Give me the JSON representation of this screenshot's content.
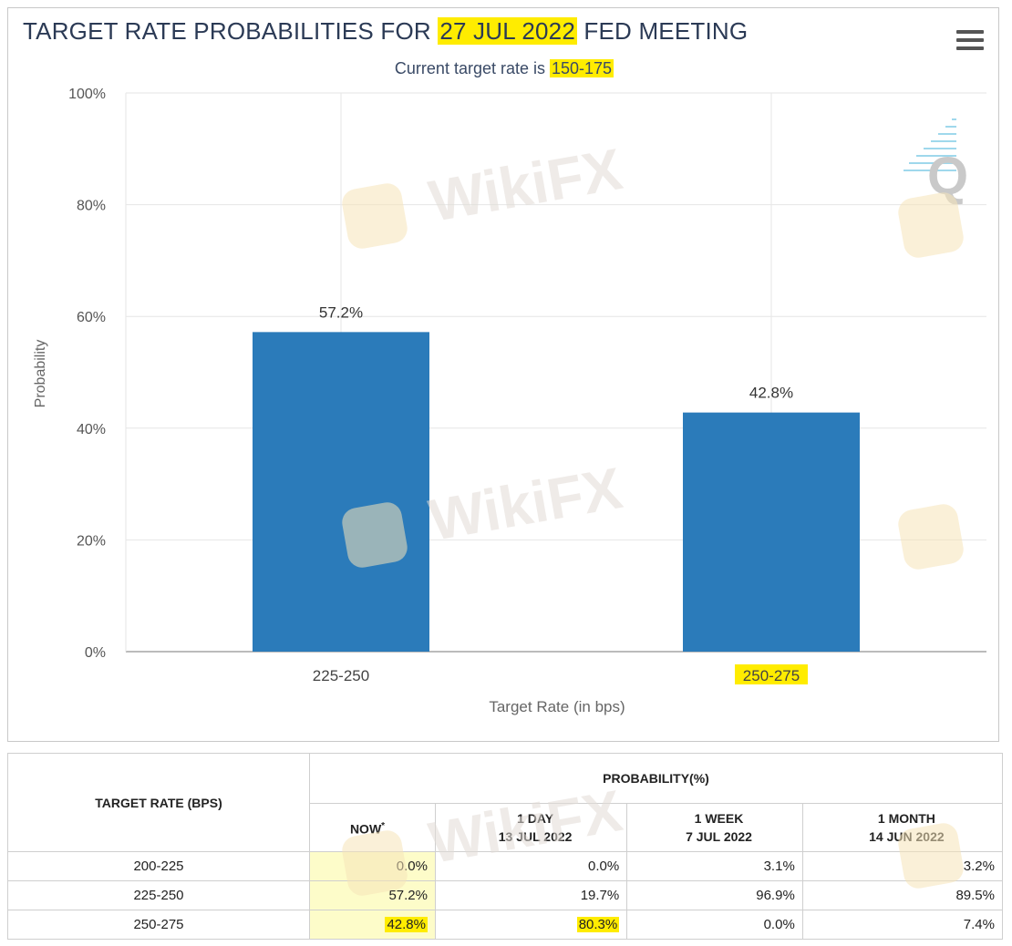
{
  "chart_title": {
    "prefix": "TARGET RATE PROBABILITIES FOR ",
    "highlight": "27 JUL 2022",
    "suffix": " FED MEETING"
  },
  "chart_subtitle": {
    "prefix": "Current target rate is ",
    "highlight": "150-175"
  },
  "watermark_text": "WikiFX",
  "chart_data": {
    "type": "bar",
    "title": "TARGET RATE PROBABILITIES FOR 27 JUL 2022 FED MEETING",
    "subtitle": "Current target rate is 150-175",
    "categories": [
      "225-250",
      "250-275"
    ],
    "values": [
      57.2,
      42.8
    ],
    "data_labels": [
      "57.2%",
      "42.8%"
    ],
    "highlighted_categories": [
      "250-275"
    ],
    "xlabel": "Target Rate (in bps)",
    "ylabel": "Probability",
    "ylim": [
      0,
      100
    ],
    "yticks": [
      "0%",
      "20%",
      "40%",
      "60%",
      "80%",
      "100%"
    ],
    "grid": true,
    "bar_color": "#2b7bba",
    "highlight_color": "#ffec00"
  },
  "table": {
    "rate_header": "TARGET RATE (BPS)",
    "prob_header": "PROBABILITY(%)",
    "columns": [
      {
        "line1": "NOW",
        "line2": "",
        "marker": "*"
      },
      {
        "line1": "1 DAY",
        "line2": "13 JUL 2022",
        "marker": ""
      },
      {
        "line1": "1 WEEK",
        "line2": "7 JUL 2022",
        "marker": ""
      },
      {
        "line1": "1 MONTH",
        "line2": "14 JUN 2022",
        "marker": ""
      }
    ],
    "rows": [
      {
        "rate": "200-225",
        "values": [
          "0.0%",
          "0.0%",
          "3.1%",
          "3.2%"
        ]
      },
      {
        "rate": "225-250",
        "values": [
          "57.2%",
          "19.7%",
          "96.9%",
          "89.5%"
        ]
      },
      {
        "rate": "250-275",
        "values": [
          "42.8%",
          "80.3%",
          "0.0%",
          "7.4%"
        ]
      }
    ]
  }
}
